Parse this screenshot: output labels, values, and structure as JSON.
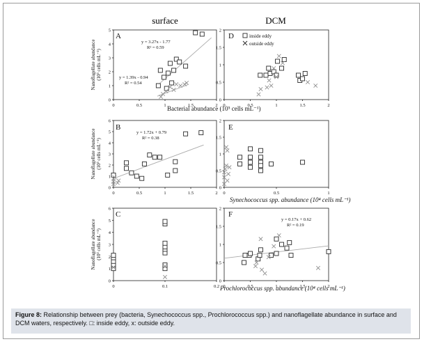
{
  "figure": {
    "column_titles": [
      "surface",
      "DCM"
    ],
    "caption": {
      "label": "Figure 8:",
      "text": "Relationship between prey (bacteria, Synechococcus spp., Prochlorococcus spp.) and nanoflagellate abundance in surface and DCM waters, respectively. □: inside eddy, x: outside eddy."
    },
    "colors": {
      "marker": "#2a2a2a",
      "outside_marker": "#909090",
      "trend": "#aaaaaa",
      "axis": "#222222"
    }
  },
  "chart_data": [
    {
      "panel": "A",
      "type": "scatter",
      "x_ticks": [
        "0",
        "0.5",
        "1",
        "1.5",
        "2"
      ],
      "xlim": [
        0,
        2
      ],
      "y_ticks": [
        "0",
        "1",
        "2",
        "3",
        "4",
        "5"
      ],
      "ylim": [
        0,
        5
      ],
      "ylabel_line1": "Nanoflagellate abundance",
      "ylabel_line2": "(10³ cells mL⁻¹)",
      "xlabel": "Bacterial  abundance  (10⁵ cells mL⁻¹)",
      "series": [
        {
          "marker": "square",
          "points": [
            [
              0.87,
              1.0
            ],
            [
              0.91,
              2.1
            ],
            [
              0.98,
              1.6
            ],
            [
              1.03,
              0.8
            ],
            [
              1.06,
              1.9
            ],
            [
              1.1,
              2.6
            ],
            [
              1.13,
              1.2
            ],
            [
              1.17,
              2.1
            ],
            [
              1.22,
              2.9
            ],
            [
              1.28,
              2.7
            ],
            [
              1.4,
              2.4
            ],
            [
              1.59,
              4.8
            ],
            [
              1.72,
              4.7
            ]
          ]
        },
        {
          "marker": "x",
          "points": [
            [
              0.92,
              0.2
            ],
            [
              0.96,
              0.4
            ],
            [
              1.02,
              0.6
            ],
            [
              1.1,
              0.9
            ],
            [
              1.17,
              0.7
            ],
            [
              1.22,
              1.1
            ],
            [
              1.3,
              1.0
            ],
            [
              1.38,
              1.1
            ],
            [
              1.42,
              1.2
            ]
          ]
        }
      ],
      "trendlines": [
        {
          "equation": "y = 3.27x - 1.77",
          "r2": "R² = 0.59",
          "from": [
            0.85,
            1.01
          ],
          "to": [
            1.9,
            4.44
          ]
        },
        {
          "equation": "y = 1.39x - 0.94",
          "r2": "R² = 0.54",
          "from": [
            0.85,
            0.24
          ],
          "to": [
            1.45,
            1.08
          ]
        }
      ]
    },
    {
      "panel": "D",
      "type": "scatter",
      "x_ticks": [
        "0",
        "0.5",
        "1",
        "1.5",
        "2"
      ],
      "xlim": [
        0,
        2
      ],
      "y_ticks": [
        "0",
        "0.5",
        "1",
        "1.5",
        "2"
      ],
      "ylim": [
        0,
        2
      ],
      "legend": [
        "inside eddy",
        "outside eddy"
      ],
      "series": [
        {
          "name": "inside eddy",
          "marker": "square",
          "points": [
            [
              0.69,
              0.7
            ],
            [
              0.8,
              0.7
            ],
            [
              0.85,
              0.9
            ],
            [
              0.88,
              0.75
            ],
            [
              0.95,
              0.8
            ],
            [
              1.0,
              0.7
            ],
            [
              1.02,
              1.1
            ],
            [
              1.1,
              0.9
            ],
            [
              1.15,
              1.15
            ],
            [
              1.42,
              0.7
            ],
            [
              1.45,
              0.55
            ],
            [
              1.5,
              0.6
            ],
            [
              1.55,
              0.75
            ]
          ]
        },
        {
          "name": "outside eddy",
          "marker": "x",
          "points": [
            [
              0.66,
              0.15
            ],
            [
              0.7,
              0.3
            ],
            [
              0.82,
              0.35
            ],
            [
              0.86,
              0.55
            ],
            [
              0.9,
              0.4
            ],
            [
              0.95,
              0.9
            ],
            [
              1.0,
              0.65
            ],
            [
              1.05,
              1.25
            ],
            [
              1.12,
              1.05
            ],
            [
              1.6,
              0.5
            ],
            [
              1.75,
              0.4
            ]
          ]
        }
      ]
    },
    {
      "panel": "B",
      "type": "scatter",
      "x_ticks": [
        "0",
        "0.5",
        "1",
        "1.5",
        "2"
      ],
      "xlim": [
        0,
        2
      ],
      "y_ticks": [
        "0",
        "1",
        "2",
        "3",
        "4",
        "5",
        "6"
      ],
      "ylim": [
        0,
        6
      ],
      "ylabel_line1": "Nanoflagellate abundance",
      "ylabel_line2": "(10³ cells mL⁻¹)",
      "series": [
        {
          "marker": "square",
          "points": [
            [
              0.0,
              1.1
            ],
            [
              0.25,
              1.7
            ],
            [
              0.25,
              2.2
            ],
            [
              0.35,
              1.3
            ],
            [
              0.45,
              1.0
            ],
            [
              0.55,
              0.8
            ],
            [
              0.6,
              2.1
            ],
            [
              0.7,
              2.9
            ],
            [
              0.8,
              2.7
            ],
            [
              0.9,
              2.7
            ],
            [
              1.05,
              1.1
            ],
            [
              1.2,
              2.3
            ],
            [
              1.2,
              1.5
            ],
            [
              1.4,
              4.8
            ],
            [
              1.7,
              4.9
            ]
          ]
        },
        {
          "marker": "x",
          "points": [
            [
              0.0,
              0.3
            ],
            [
              0.0,
              0.5
            ],
            [
              0.0,
              0.8
            ],
            [
              0.02,
              0.9
            ],
            [
              0.08,
              0.4
            ],
            [
              0.1,
              0.6
            ]
          ]
        }
      ],
      "trendlines": [
        {
          "equation": "y = 1.72x + 0.79",
          "r2": "R² = 0.38",
          "from": [
            0.0,
            0.79
          ],
          "to": [
            1.75,
            3.8
          ]
        }
      ]
    },
    {
      "panel": "E",
      "type": "scatter",
      "x_ticks": [
        "0",
        "0.5",
        "1"
      ],
      "xlim": [
        0,
        1
      ],
      "y_ticks": [
        "0",
        "0.5",
        "1",
        "1.5",
        "2"
      ],
      "ylim": [
        0,
        2
      ],
      "xlabel": "Synechococcus spp. abundance  (10⁴ cells mL⁻¹)",
      "series": [
        {
          "marker": "square",
          "points": [
            [
              0.15,
              0.9
            ],
            [
              0.15,
              0.7
            ],
            [
              0.25,
              1.15
            ],
            [
              0.25,
              0.9
            ],
            [
              0.25,
              0.75
            ],
            [
              0.25,
              0.6
            ],
            [
              0.35,
              1.1
            ],
            [
              0.35,
              0.9
            ],
            [
              0.35,
              0.75
            ],
            [
              0.35,
              0.65
            ],
            [
              0.35,
              0.5
            ],
            [
              0.45,
              0.7
            ],
            [
              0.75,
              0.75
            ]
          ]
        },
        {
          "marker": "x",
          "points": [
            [
              0.0,
              0.1
            ],
            [
              0.0,
              0.3
            ],
            [
              0.0,
              0.45
            ],
            [
              0.01,
              0.55
            ],
            [
              0.02,
              0.65
            ],
            [
              0.02,
              1.2
            ],
            [
              0.03,
              0.2
            ],
            [
              0.04,
              0.4
            ],
            [
              0.05,
              0.6
            ],
            [
              0.03,
              1.1
            ]
          ]
        }
      ]
    },
    {
      "panel": "C",
      "type": "scatter",
      "x_ticks": [
        "0",
        "0.1",
        "0.2"
      ],
      "xlim": [
        0,
        0.2
      ],
      "y_ticks": [
        "0",
        "1",
        "2",
        "3",
        "4",
        "5",
        "6"
      ],
      "ylim": [
        0,
        6
      ],
      "ylabel_line1": "Nanoflagellate abundance",
      "ylabel_line2": "(10³ cells mL⁻¹)",
      "series": [
        {
          "marker": "square",
          "points": [
            [
              0.0,
              1.0
            ],
            [
              0.0,
              1.3
            ],
            [
              0.0,
              1.6
            ],
            [
              0.0,
              1.9
            ],
            [
              0.0,
              2.1
            ],
            [
              0.1,
              1.0
            ],
            [
              0.1,
              1.3
            ],
            [
              0.1,
              2.3
            ],
            [
              0.1,
              2.6
            ],
            [
              0.1,
              2.8
            ],
            [
              0.1,
              3.1
            ],
            [
              0.1,
              4.7
            ],
            [
              0.1,
              4.9
            ]
          ]
        },
        {
          "marker": "x",
          "points": [
            [
              0.0,
              1.1
            ],
            [
              0.1,
              0.3
            ],
            [
              0.1,
              1.2
            ]
          ]
        }
      ]
    },
    {
      "panel": "F",
      "type": "scatter",
      "x_ticks": [
        "0",
        "0.5",
        "1",
        "1.5",
        "2"
      ],
      "xlim": [
        0,
        2
      ],
      "y_ticks": [
        "0",
        "0.5",
        "1",
        "1.5",
        "2"
      ],
      "ylim": [
        0,
        2
      ],
      "xlabel": "Prochlorococcus spp. abundance (10⁴ cells mL⁻¹)",
      "series": [
        {
          "marker": "square",
          "points": [
            [
              0.38,
              0.5
            ],
            [
              0.4,
              0.7
            ],
            [
              0.48,
              0.7
            ],
            [
              0.5,
              0.75
            ],
            [
              0.65,
              0.6
            ],
            [
              0.68,
              0.7
            ],
            [
              0.7,
              0.85
            ],
            [
              0.9,
              0.7
            ],
            [
              1.0,
              0.75
            ],
            [
              1.0,
              1.15
            ],
            [
              1.1,
              1.0
            ],
            [
              1.2,
              0.9
            ],
            [
              1.25,
              1.05
            ],
            [
              1.28,
              0.7
            ],
            [
              2.0,
              0.8
            ]
          ]
        },
        {
          "marker": "x",
          "points": [
            [
              0.6,
              0.4
            ],
            [
              0.62,
              0.5
            ],
            [
              0.7,
              1.15
            ],
            [
              0.72,
              0.3
            ],
            [
              0.78,
              0.2
            ],
            [
              0.85,
              0.65
            ],
            [
              0.95,
              0.95
            ],
            [
              1.05,
              1.25
            ],
            [
              1.8,
              0.35
            ]
          ]
        }
      ],
      "trendlines": [
        {
          "equation": "y = 0.17x + 0.62",
          "r2": "R² = 0.19",
          "from": [
            0.0,
            0.62
          ],
          "to": [
            2.0,
            0.96
          ]
        }
      ]
    }
  ]
}
